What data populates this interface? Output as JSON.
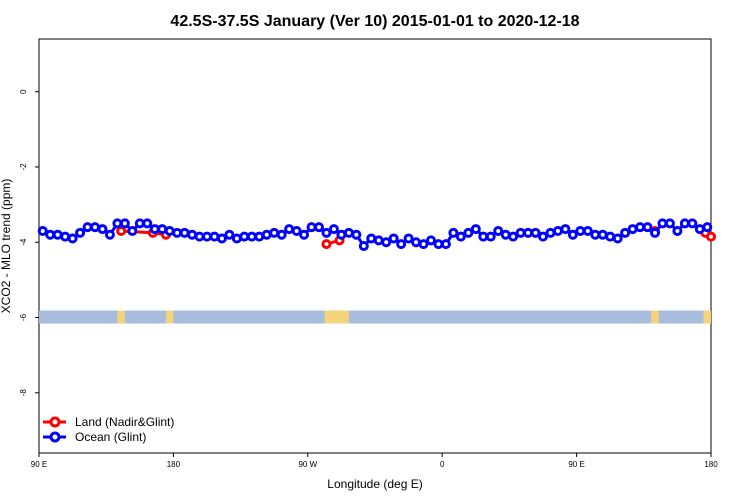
{
  "chart_data": {
    "type": "line",
    "title": "42.5S-37.5S January (Ver 10)   2015-01-01 to 2020-12-18",
    "xlabel": "Longitude (deg E)",
    "ylabel": "XCO2 - MLO trend (ppm)",
    "xlim": [
      90,
      450
    ],
    "ylim": [
      -9.6,
      1.4
    ],
    "x_ticks": [
      {
        "value": 90,
        "label": "90 E"
      },
      {
        "value": 162,
        "label": "180"
      },
      {
        "value": 234,
        "label": "90 W"
      },
      {
        "value": 306,
        "label": "0"
      },
      {
        "value": 378,
        "label": "90 E"
      },
      {
        "value": 450,
        "label": "180"
      }
    ],
    "y_ticks": [
      {
        "value": 0,
        "label": "0"
      },
      {
        "value": -2,
        "label": "-2"
      },
      {
        "value": -4,
        "label": "-4"
      },
      {
        "value": -6,
        "label": "-6"
      },
      {
        "value": -8,
        "label": "-8"
      }
    ],
    "grid": false,
    "legend_position": "bottom-left",
    "series": [
      {
        "name": "Land (Nadir&Glint)",
        "color": "#ff0000",
        "segments": [
          {
            "x": [
              134,
              151,
              158
            ],
            "y": [
              -3.7,
              -3.75,
              -3.8
            ]
          },
          {
            "x": [
              244,
              251
            ],
            "y": [
              -4.05,
              -3.95
            ]
          },
          {
            "x": [
              420
            ],
            "y": [
              -3.7
            ]
          },
          {
            "x": [
              447,
              450
            ],
            "y": [
              -3.75,
              -3.85
            ]
          }
        ]
      },
      {
        "name": "Ocean (Glint)",
        "color": "#0000ff",
        "x": [
          92,
          96,
          100,
          104,
          108,
          112,
          116,
          120,
          124,
          128,
          132,
          136,
          140,
          144,
          148,
          152,
          156,
          160,
          164,
          168,
          172,
          176,
          180,
          184,
          188,
          192,
          196,
          200,
          204,
          208,
          212,
          216,
          220,
          224,
          228,
          232,
          236,
          240,
          244,
          248,
          252,
          256,
          260,
          264,
          268,
          272,
          276,
          280,
          284,
          288,
          292,
          296,
          300,
          304,
          308,
          312,
          316,
          320,
          324,
          328,
          332,
          336,
          340,
          344,
          348,
          352,
          356,
          360,
          364,
          368,
          372,
          376,
          380,
          384,
          388,
          392,
          396,
          400,
          404,
          408,
          412,
          416,
          420,
          424,
          428,
          432,
          436,
          440,
          444,
          448
        ],
        "y": [
          -3.7,
          -3.8,
          -3.8,
          -3.85,
          -3.9,
          -3.75,
          -3.6,
          -3.6,
          -3.65,
          -3.8,
          -3.5,
          -3.5,
          -3.7,
          -3.5,
          -3.5,
          -3.65,
          -3.65,
          -3.7,
          -3.75,
          -3.75,
          -3.8,
          -3.85,
          -3.85,
          -3.85,
          -3.9,
          -3.8,
          -3.9,
          -3.85,
          -3.85,
          -3.85,
          -3.8,
          -3.75,
          -3.8,
          -3.65,
          -3.7,
          -3.8,
          -3.6,
          -3.6,
          -3.75,
          -3.65,
          -3.8,
          -3.75,
          -3.8,
          -4.1,
          -3.9,
          -3.95,
          -4.0,
          -3.9,
          -4.05,
          -3.9,
          -4.0,
          -4.05,
          -3.95,
          -4.05,
          -4.05,
          -3.75,
          -3.85,
          -3.75,
          -3.65,
          -3.85,
          -3.85,
          -3.7,
          -3.8,
          -3.85,
          -3.75,
          -3.75,
          -3.75,
          -3.85,
          -3.75,
          -3.7,
          -3.65,
          -3.8,
          -3.7,
          -3.7,
          -3.8,
          -3.8,
          -3.85,
          -3.9,
          -3.75,
          -3.65,
          -3.6,
          -3.6,
          -3.75,
          -3.5,
          -3.5,
          -3.7,
          -3.5,
          -3.5,
          -3.65,
          -3.6
        ]
      }
    ],
    "land_mask": {
      "y": -6,
      "band_color": "#a8bcdc",
      "land_color": "#f5d37a",
      "land_ranges": [
        [
          132,
          136
        ],
        [
          158,
          162
        ],
        [
          243,
          256
        ],
        [
          418,
          422
        ],
        [
          446,
          450
        ]
      ]
    }
  }
}
